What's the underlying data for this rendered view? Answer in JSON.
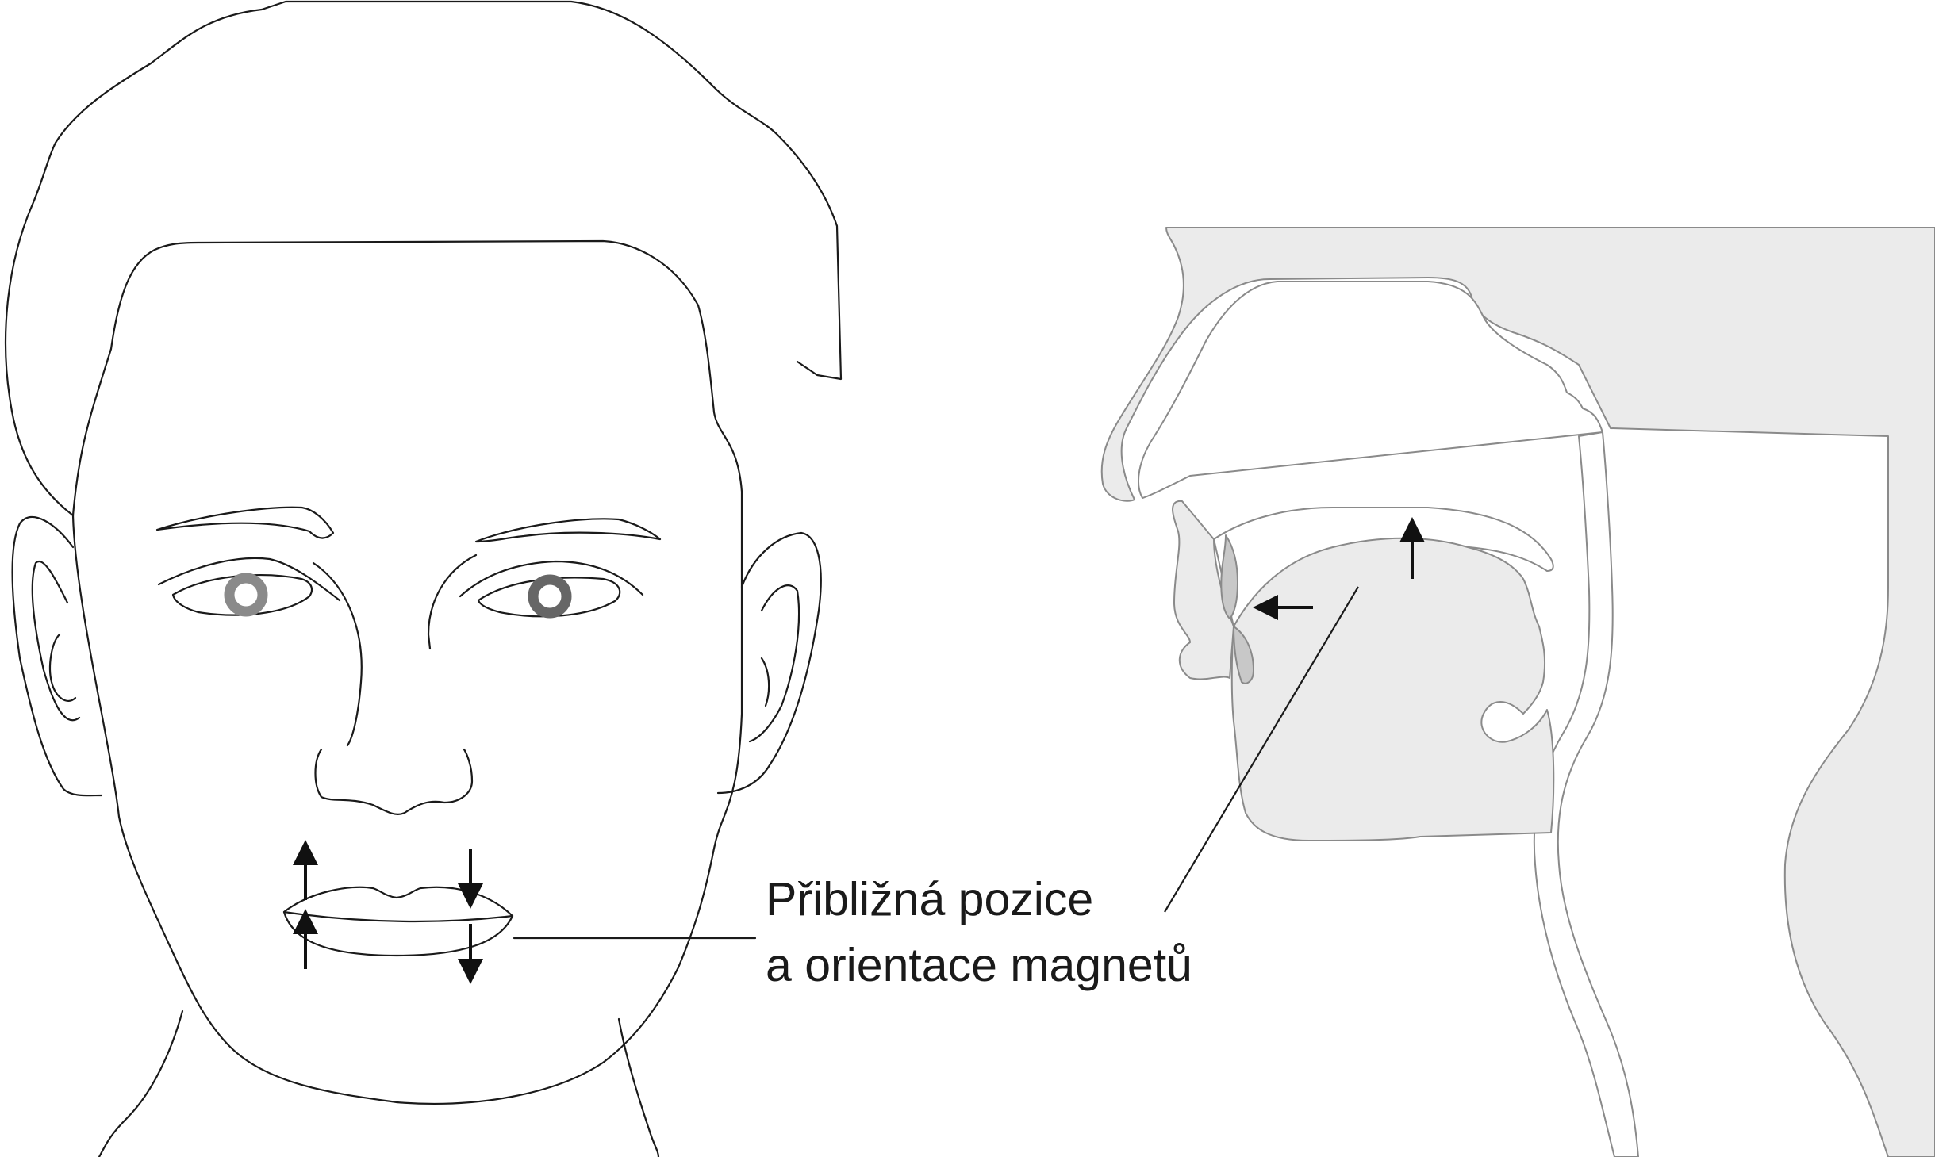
{
  "annotation": {
    "line1": "Přibližná pozice",
    "line2": "a orientace magnetů"
  },
  "colors": {
    "outline": "#1a1a1a",
    "tissue": "#ebebeb",
    "tissue_stroke": "#8a8a8a",
    "teeth": "#c8c8c8",
    "iris_left": "#8a8a8a",
    "iris_right": "#666666"
  }
}
